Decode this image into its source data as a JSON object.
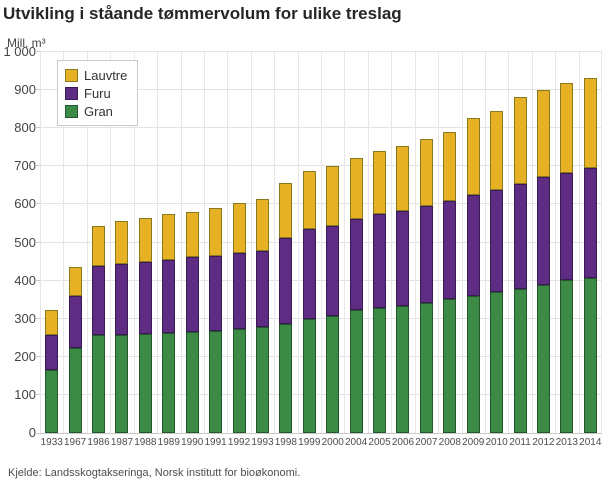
{
  "title": "Utvikling i ståande tømmervolum for ulike treslag",
  "unit_label": "Mill. m³",
  "source": "Kjelde: Landsskogtakseringa, Norsk institutt for bioøkonomi.",
  "colors": {
    "background": "#ffffff",
    "grid": "#e3e3e3",
    "axis_text": "#4d4d4d",
    "title_text": "#262626",
    "lauvtre": "#e6b125",
    "furu": "#5f2c83",
    "gran": "#3d8a47"
  },
  "chart_data": {
    "type": "bar",
    "stacked": true,
    "title": "Utvikling i ståande tømmervolum for ulike treslag",
    "xlabel": "",
    "ylabel": "Mill. m³",
    "ylim": [
      0,
      1000
    ],
    "ytick_step": 100,
    "ytick_labels": [
      "0",
      "100",
      "200",
      "300",
      "400",
      "500",
      "600",
      "700",
      "800",
      "900",
      "1 000"
    ],
    "grid": true,
    "legend_position": "top-left",
    "legend_entries": [
      "Lauvtre",
      "Furu",
      "Gran"
    ],
    "categories": [
      "1933",
      "1967",
      "1986",
      "1987",
      "1988",
      "1989",
      "1990",
      "1991",
      "1992",
      "1993",
      "1998",
      "1999",
      "2000",
      "2004",
      "2005",
      "2006",
      "2007",
      "2008",
      "2009",
      "2010",
      "2011",
      "2012",
      "2013",
      "2014"
    ],
    "stack_order_bottom_to_top": [
      "Gran",
      "Furu",
      "Lauvtre"
    ],
    "series": [
      {
        "name": "Lauvtre",
        "color": "#e6b125",
        "border_color": "#8a7a1f",
        "values": [
          65,
          76,
          105,
          112,
          116,
          120,
          120,
          126,
          131,
          136,
          145,
          153,
          159,
          161,
          164,
          170,
          175,
          180,
          202,
          208,
          230,
          229,
          236,
          238
        ]
      },
      {
        "name": "Furu",
        "color": "#5f2c83",
        "border_color": "#3a1a54",
        "values": [
          92,
          137,
          182,
          186,
          189,
          191,
          195,
          196,
          199,
          200,
          225,
          235,
          235,
          239,
          248,
          249,
          254,
          258,
          265,
          267,
          274,
          282,
          282,
          289
        ]
      },
      {
        "name": "Gran",
        "color": "#3d8a47",
        "border_color": "#24582c",
        "values": [
          165,
          222,
          257,
          258,
          260,
          263,
          266,
          269,
          273,
          278,
          286,
          300,
          308,
          323,
          327,
          334,
          342,
          352,
          360,
          371,
          379,
          389,
          400,
          406
        ]
      }
    ],
    "totals": [
      322,
      435,
      544,
      556,
      565,
      574,
      581,
      591,
      603,
      614,
      656,
      688,
      702,
      723,
      739,
      753,
      771,
      790,
      827,
      846,
      883,
      900,
      918,
      933
    ]
  }
}
